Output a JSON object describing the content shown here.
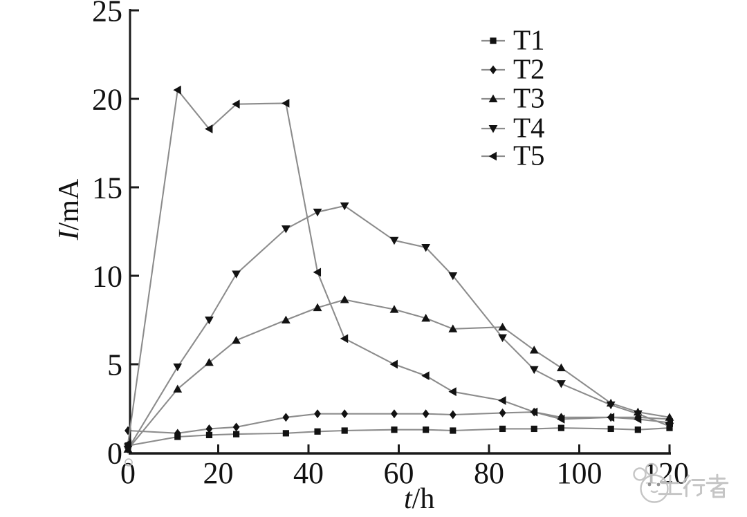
{
  "figure": {
    "background": "#ffffff"
  },
  "chart_data": {
    "type": "line",
    "title": "",
    "xlabel": "t/h",
    "xlabel_italic": "t",
    "xlabel_rest": "/h",
    "ylabel": "I/mA",
    "ylabel_italic": "I",
    "ylabel_rest": "/mA",
    "xlim": [
      0,
      120
    ],
    "ylim": [
      0,
      25
    ],
    "x_ticks": [
      0,
      20,
      40,
      60,
      80,
      100,
      120
    ],
    "y_ticks": [
      0,
      5,
      10,
      15,
      20,
      25
    ],
    "grid": false,
    "legend_position": "top-right-inside",
    "x": [
      0,
      11,
      18,
      24,
      35,
      42,
      48,
      59,
      66,
      72,
      83,
      90,
      96,
      107,
      113,
      120
    ],
    "series": [
      {
        "name": "T1",
        "marker": "square",
        "values": [
          0.4,
          0.9,
          1.0,
          1.05,
          1.1,
          1.2,
          1.25,
          1.3,
          1.3,
          1.25,
          1.35,
          1.35,
          1.4,
          1.35,
          1.3,
          1.4
        ]
      },
      {
        "name": "T2",
        "marker": "diamond",
        "values": [
          1.25,
          1.1,
          1.35,
          1.45,
          2.0,
          2.2,
          2.2,
          2.2,
          2.2,
          2.15,
          2.25,
          2.3,
          2.0,
          2.0,
          2.0,
          1.9
        ]
      },
      {
        "name": "T3",
        "marker": "triangle-up",
        "values": [
          0.2,
          3.6,
          5.1,
          6.35,
          7.5,
          8.2,
          8.65,
          8.1,
          7.6,
          7.0,
          7.1,
          5.8,
          4.8,
          2.8,
          2.3,
          2.0
        ]
      },
      {
        "name": "T4",
        "marker": "triangle-down",
        "values": [
          0.2,
          4.85,
          7.5,
          10.1,
          12.65,
          13.6,
          13.95,
          12.0,
          11.6,
          10.0,
          6.5,
          4.7,
          3.9,
          2.7,
          2.2,
          1.5
        ]
      },
      {
        "name": "T5",
        "marker": "triangle-left",
        "values": [
          0.5,
          20.5,
          18.3,
          19.7,
          19.75,
          10.2,
          6.45,
          5.0,
          4.35,
          3.45,
          2.95,
          2.3,
          1.9,
          2.0,
          1.9,
          1.7
        ]
      }
    ],
    "styles": {
      "line_color": "#8c8c8c",
      "marker_color": "#121212",
      "axis_color": "#1a1a1a",
      "text_color": "#111111"
    }
  },
  "watermark": {
    "text": "土行者",
    "logo": "cloud-mascot-logo",
    "color": "#c2c2c2"
  }
}
